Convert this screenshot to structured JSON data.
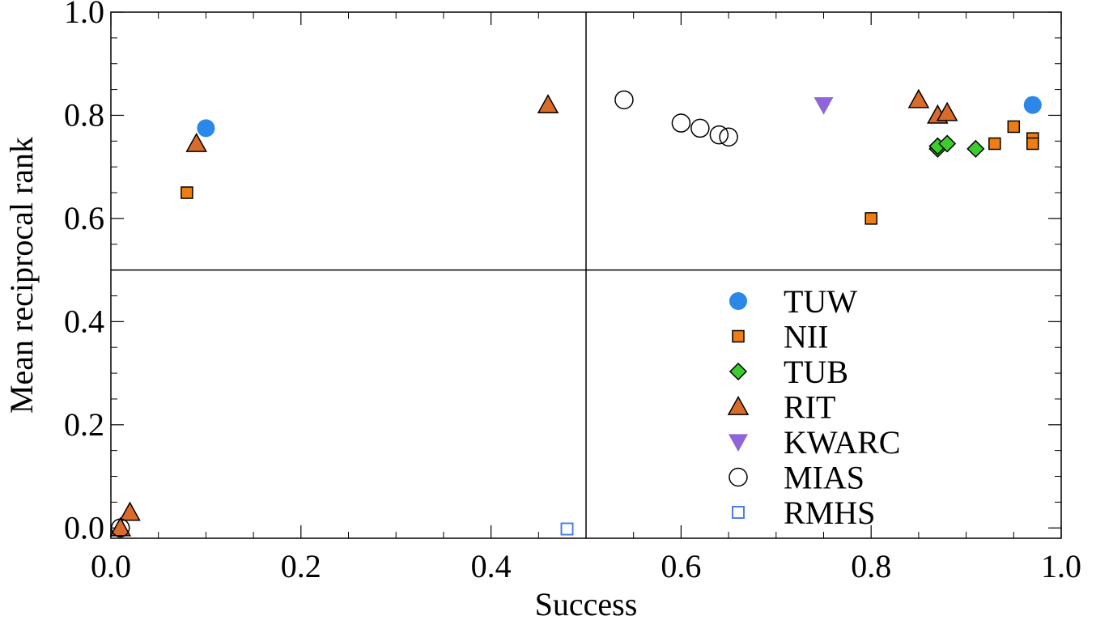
{
  "chart_data": {
    "type": "scatter",
    "title": "",
    "xlabel": "Success",
    "ylabel": "Mean reciprocal rank",
    "xlim": [
      0.0,
      1.0
    ],
    "ylim": [
      -0.02,
      1.0
    ],
    "x_ticks": [
      "0.0",
      "0.2",
      "0.4",
      "0.6",
      "0.8",
      "1.0"
    ],
    "y_ticks": [
      "0.0",
      "0.2",
      "0.4",
      "0.6",
      "0.8",
      "1.0"
    ],
    "grid": false,
    "reference_lines": {
      "x": 0.5,
      "y": 0.5
    },
    "legend_position": "lower-right",
    "series": [
      {
        "name": "TUW",
        "marker": "circle-filled",
        "color": "#2b87e8",
        "points": [
          [
            0.1,
            0.775
          ],
          [
            0.97,
            0.82
          ]
        ]
      },
      {
        "name": "NII",
        "marker": "square-filled",
        "color": "#f07d12",
        "points": [
          [
            0.08,
            0.65
          ],
          [
            0.8,
            0.6
          ],
          [
            0.93,
            0.745
          ],
          [
            0.95,
            0.778
          ],
          [
            0.97,
            0.755
          ],
          [
            0.97,
            0.745
          ]
        ]
      },
      {
        "name": "TUB",
        "marker": "diamond-filled",
        "color": "#3dcc2e",
        "points": [
          [
            0.87,
            0.735
          ],
          [
            0.87,
            0.74
          ],
          [
            0.88,
            0.745
          ],
          [
            0.91,
            0.735
          ]
        ]
      },
      {
        "name": "RIT",
        "marker": "triangle-up-filled",
        "color": "#d96b2b",
        "points": [
          [
            0.09,
            0.745
          ],
          [
            0.46,
            0.82
          ],
          [
            0.85,
            0.83
          ],
          [
            0.87,
            0.8
          ],
          [
            0.88,
            0.805
          ],
          [
            0.02,
            0.03
          ],
          [
            0.01,
            0.0
          ]
        ]
      },
      {
        "name": "KWARC",
        "marker": "triangle-down-filled",
        "color": "#8f66d9",
        "points": [
          [
            0.75,
            0.82
          ]
        ]
      },
      {
        "name": "MIAS",
        "marker": "circle-open",
        "color": "#000000",
        "points": [
          [
            0.54,
            0.83
          ],
          [
            0.6,
            0.785
          ],
          [
            0.62,
            0.775
          ],
          [
            0.64,
            0.762
          ],
          [
            0.65,
            0.758
          ],
          [
            0.01,
            0.0
          ]
        ]
      },
      {
        "name": "RMHS",
        "marker": "square-open",
        "color": "#4a7fe8",
        "points": [
          [
            0.48,
            -0.002
          ]
        ]
      }
    ]
  }
}
